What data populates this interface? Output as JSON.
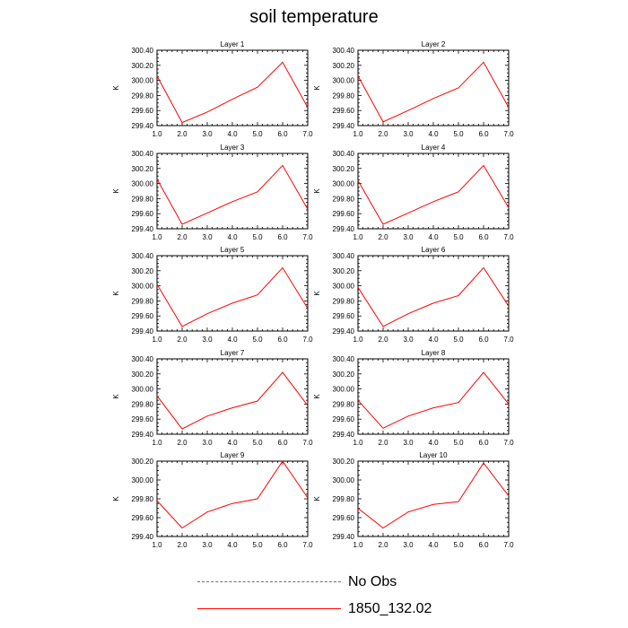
{
  "title": "soil temperature",
  "legend": [
    {
      "label": "No Obs",
      "color": "#6a6a8a",
      "dash": true
    },
    {
      "label": "1850_132.02",
      "color": "#ff0000",
      "dash": false
    }
  ],
  "chart_data": [
    {
      "type": "line",
      "title": "Layer 1",
      "ylabel": "K",
      "x": [
        1,
        2,
        3,
        4,
        5,
        6,
        7
      ],
      "xlim": [
        1.0,
        7.0
      ],
      "ylim": [
        299.4,
        300.4
      ],
      "yticks": [
        "299.40",
        "299.60",
        "299.80",
        "300.00",
        "300.20",
        "300.40"
      ],
      "xticks": [
        "1.0",
        "2.0",
        "3.0",
        "4.0",
        "5.0",
        "6.0",
        "7.0"
      ],
      "series": [
        {
          "name": "1850_132.02",
          "values": [
            300.06,
            299.44,
            299.58,
            299.75,
            299.91,
            300.24,
            299.64
          ]
        }
      ]
    },
    {
      "type": "line",
      "title": "Layer 2",
      "ylabel": "K",
      "x": [
        1,
        2,
        3,
        4,
        5,
        6,
        7
      ],
      "xlim": [
        1.0,
        7.0
      ],
      "ylim": [
        299.4,
        300.4
      ],
      "yticks": [
        "299.40",
        "299.60",
        "299.80",
        "300.00",
        "300.20",
        "300.40"
      ],
      "xticks": [
        "1.0",
        "2.0",
        "3.0",
        "4.0",
        "5.0",
        "6.0",
        "7.0"
      ],
      "series": [
        {
          "name": "1850_132.02",
          "values": [
            300.06,
            299.45,
            299.6,
            299.76,
            299.9,
            300.24,
            299.64
          ]
        }
      ]
    },
    {
      "type": "line",
      "title": "Layer 3",
      "ylabel": "K",
      "x": [
        1,
        2,
        3,
        4,
        5,
        6,
        7
      ],
      "xlim": [
        1.0,
        7.0
      ],
      "ylim": [
        299.4,
        300.4
      ],
      "yticks": [
        "299.40",
        "299.60",
        "299.80",
        "300.00",
        "300.20",
        "300.40"
      ],
      "xticks": [
        "1.0",
        "2.0",
        "3.0",
        "4.0",
        "5.0",
        "6.0",
        "7.0"
      ],
      "series": [
        {
          "name": "1850_132.02",
          "values": [
            300.06,
            299.46,
            299.61,
            299.76,
            299.89,
            300.24,
            299.66
          ]
        }
      ]
    },
    {
      "type": "line",
      "title": "Layer 4",
      "ylabel": "K",
      "x": [
        1,
        2,
        3,
        4,
        5,
        6,
        7
      ],
      "xlim": [
        1.0,
        7.0
      ],
      "ylim": [
        299.4,
        300.4
      ],
      "yticks": [
        "299.40",
        "299.60",
        "299.80",
        "300.00",
        "300.20",
        "300.40"
      ],
      "xticks": [
        "1.0",
        "2.0",
        "3.0",
        "4.0",
        "5.0",
        "6.0",
        "7.0"
      ],
      "series": [
        {
          "name": "1850_132.02",
          "values": [
            300.04,
            299.46,
            299.61,
            299.76,
            299.89,
            300.24,
            299.68
          ]
        }
      ]
    },
    {
      "type": "line",
      "title": "Layer 5",
      "ylabel": "K",
      "x": [
        1,
        2,
        3,
        4,
        5,
        6,
        7
      ],
      "xlim": [
        1.0,
        7.0
      ],
      "ylim": [
        299.4,
        300.4
      ],
      "yticks": [
        "299.40",
        "299.60",
        "299.80",
        "300.00",
        "300.20",
        "300.40"
      ],
      "xticks": [
        "1.0",
        "2.0",
        "3.0",
        "4.0",
        "5.0",
        "6.0",
        "7.0"
      ],
      "series": [
        {
          "name": "1850_132.02",
          "values": [
            300.02,
            299.46,
            299.63,
            299.77,
            299.88,
            300.24,
            299.7
          ]
        }
      ]
    },
    {
      "type": "line",
      "title": "Layer 6",
      "ylabel": "K",
      "x": [
        1,
        2,
        3,
        4,
        5,
        6,
        7
      ],
      "xlim": [
        1.0,
        7.0
      ],
      "ylim": [
        299.4,
        300.4
      ],
      "yticks": [
        "299.40",
        "299.60",
        "299.80",
        "300.00",
        "300.20",
        "300.40"
      ],
      "xticks": [
        "1.0",
        "2.0",
        "3.0",
        "4.0",
        "5.0",
        "6.0",
        "7.0"
      ],
      "series": [
        {
          "name": "1850_132.02",
          "values": [
            299.98,
            299.46,
            299.63,
            299.77,
            299.87,
            300.24,
            299.73
          ]
        }
      ]
    },
    {
      "type": "line",
      "title": "Layer 7",
      "ylabel": "K",
      "x": [
        1,
        2,
        3,
        4,
        5,
        6,
        7
      ],
      "xlim": [
        1.0,
        7.0
      ],
      "ylim": [
        299.4,
        300.4
      ],
      "yticks": [
        "299.40",
        "299.60",
        "299.80",
        "300.00",
        "300.20",
        "300.40"
      ],
      "xticks": [
        "1.0",
        "2.0",
        "3.0",
        "4.0",
        "5.0",
        "6.0",
        "7.0"
      ],
      "series": [
        {
          "name": "1850_132.02",
          "values": [
            299.91,
            299.47,
            299.64,
            299.75,
            299.84,
            300.22,
            299.78
          ]
        }
      ]
    },
    {
      "type": "line",
      "title": "Layer 8",
      "ylabel": "K",
      "x": [
        1,
        2,
        3,
        4,
        5,
        6,
        7
      ],
      "xlim": [
        1.0,
        7.0
      ],
      "ylim": [
        299.4,
        300.4
      ],
      "yticks": [
        "299.40",
        "299.60",
        "299.80",
        "300.00",
        "300.20",
        "300.40"
      ],
      "xticks": [
        "1.0",
        "2.0",
        "3.0",
        "4.0",
        "5.0",
        "6.0",
        "7.0"
      ],
      "series": [
        {
          "name": "1850_132.02",
          "values": [
            299.85,
            299.48,
            299.64,
            299.75,
            299.82,
            300.22,
            299.8
          ]
        }
      ]
    },
    {
      "type": "line",
      "title": "Layer 9",
      "ylabel": "K",
      "x": [
        1,
        2,
        3,
        4,
        5,
        6,
        7
      ],
      "xlim": [
        1.0,
        7.0
      ],
      "ylim": [
        299.4,
        300.2
      ],
      "yticks": [
        "299.40",
        "299.60",
        "299.80",
        "300.00",
        "300.20"
      ],
      "xticks": [
        "1.0",
        "2.0",
        "3.0",
        "4.0",
        "5.0",
        "6.0",
        "7.0"
      ],
      "series": [
        {
          "name": "1850_132.02",
          "values": [
            299.78,
            299.49,
            299.66,
            299.75,
            299.8,
            300.2,
            299.81
          ]
        }
      ]
    },
    {
      "type": "line",
      "title": "Layer 10",
      "ylabel": "K",
      "x": [
        1,
        2,
        3,
        4,
        5,
        6,
        7
      ],
      "xlim": [
        1.0,
        7.0
      ],
      "ylim": [
        299.4,
        300.2
      ],
      "yticks": [
        "299.40",
        "299.60",
        "299.80",
        "300.00",
        "300.20"
      ],
      "xticks": [
        "1.0",
        "2.0",
        "3.0",
        "4.0",
        "5.0",
        "6.0",
        "7.0"
      ],
      "series": [
        {
          "name": "1850_132.02",
          "values": [
            299.7,
            299.49,
            299.66,
            299.74,
            299.77,
            300.18,
            299.83
          ]
        }
      ]
    }
  ]
}
